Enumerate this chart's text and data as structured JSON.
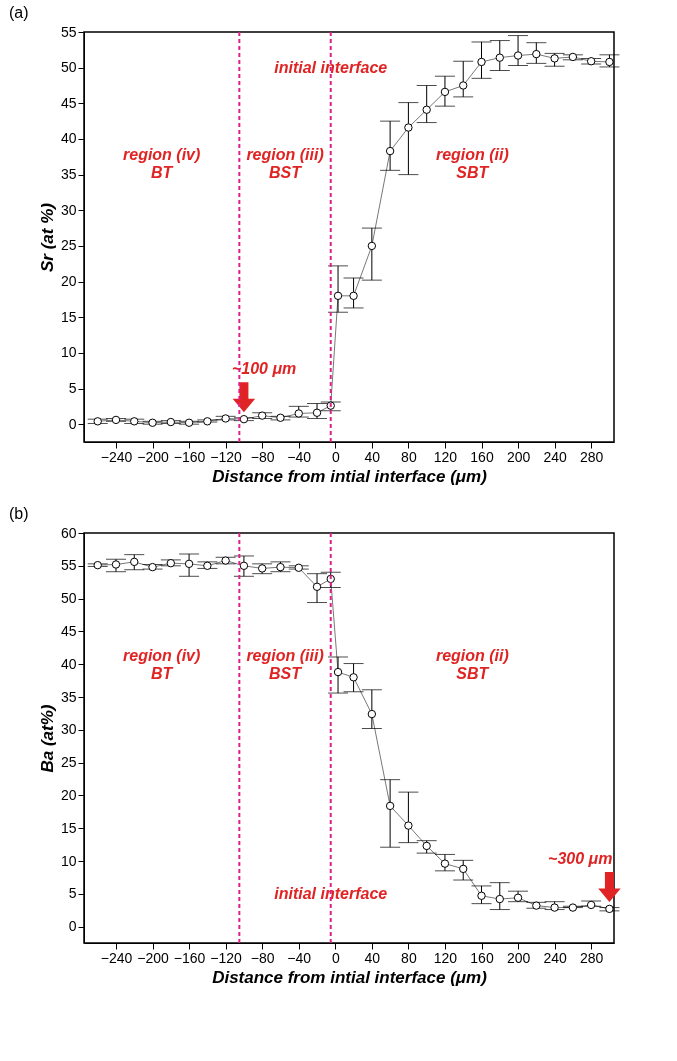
{
  "chart_data": [
    {
      "type": "line",
      "title": "(a)",
      "xlabel": "Distance from intial interface (μm)",
      "ylabel": "Sr (at %)",
      "marker": "circle",
      "x": [
        -260,
        -240,
        -220,
        -200,
        -180,
        -160,
        -140,
        -120,
        -100,
        -80,
        -60,
        -40,
        -20,
        -5,
        3,
        20,
        40,
        60,
        80,
        100,
        120,
        140,
        160,
        180,
        200,
        220,
        240,
        260,
        280,
        300
      ],
      "series": [
        {
          "color": "#555555",
          "values": [
            0.4,
            0.6,
            0.4,
            0.2,
            0.3,
            0.2,
            0.4,
            0.8,
            0.7,
            1.2,
            0.9,
            1.5,
            1.6,
            2.6,
            18,
            18,
            25,
            38.3,
            41.6,
            44.1,
            46.6,
            47.5,
            50.8,
            51.4,
            51.7,
            51.9,
            51.3,
            51.5,
            50.9,
            50.8
          ],
          "errors": [
            [
              0.1,
              0.7
            ],
            [
              0.4,
              0.8
            ],
            [
              0.1,
              0.7
            ],
            [
              0,
              0.4
            ],
            [
              0.1,
              0.5
            ],
            [
              0,
              0.4
            ],
            [
              0.3,
              0.6
            ],
            [
              0.6,
              1.1
            ],
            [
              0.5,
              0.9
            ],
            [
              0.8,
              1.6
            ],
            [
              0.6,
              1.1
            ],
            [
              1,
              2.5
            ],
            [
              0.8,
              2.9
            ],
            [
              1.9,
              3.1
            ],
            [
              15.7,
              22.2
            ],
            [
              16.3,
              20.5
            ],
            [
              20.2,
              27.5
            ],
            [
              35.6,
              42.5
            ],
            [
              35,
              45.1
            ],
            [
              42.3,
              47.5
            ],
            [
              44.6,
              48.8
            ],
            [
              45.9,
              50.9
            ],
            [
              48.5,
              53.6
            ],
            [
              49.6,
              53.8
            ],
            [
              50.3,
              54.5
            ],
            [
              50.6,
              53.5
            ],
            [
              50.2,
              52
            ],
            [
              51.1,
              51.8
            ],
            [
              50.5,
              51.3
            ],
            [
              50.1,
              51.8
            ]
          ]
        }
      ],
      "xlim": [
        -275,
        305
      ],
      "xticks": [
        -240,
        -200,
        -160,
        -120,
        -80,
        -40,
        0,
        40,
        80,
        120,
        160,
        200,
        240,
        280
      ],
      "ylim": [
        -2.5,
        55
      ],
      "yticks": [
        0,
        5,
        10,
        15,
        20,
        25,
        30,
        35,
        40,
        45,
        50,
        55
      ],
      "ref_lines": [
        {
          "axis": "x",
          "value": -105,
          "color": "#e0208a",
          "line_style": "dashed"
        },
        {
          "axis": "x",
          "value": -5,
          "color": "#e0208a",
          "line_style": "dashed"
        }
      ],
      "annotations": [
        "region (iv)\nBT",
        "region (iii)\nBST",
        "region (ii)\nSBT",
        {
          "text": "initial interface",
          "x": -5,
          "y": 50
        },
        {
          "text": "~100 μm",
          "x": -100,
          "y": 0.7
        }
      ]
    },
    {
      "type": "line",
      "title": "(b)",
      "xlabel": "Distance from intial interface (μm)",
      "ylabel": "Ba (at%)",
      "marker": "circle",
      "x": [
        -260,
        -240,
        -220,
        -200,
        -180,
        -160,
        -140,
        -120,
        -100,
        -80,
        -60,
        -40,
        -20,
        -5,
        3,
        20,
        40,
        60,
        80,
        100,
        120,
        140,
        160,
        180,
        200,
        220,
        240,
        260,
        280,
        300
      ],
      "series": [
        {
          "color": "#555555",
          "values": [
            55.1,
            55.2,
            55.6,
            54.8,
            55.4,
            55.3,
            55,
            55.8,
            55,
            54.6,
            54.8,
            54.7,
            51.8,
            53,
            38.8,
            38,
            32.4,
            18.4,
            15.4,
            12.3,
            9.6,
            8.8,
            4.7,
            4.2,
            4.4,
            3.2,
            2.9,
            2.9,
            3.3,
            2.7
          ],
          "errors": [
            [
              54.9,
              55.3
            ],
            [
              54.1,
              56
            ],
            [
              54.4,
              56.7
            ],
            [
              54.5,
              55.2
            ],
            [
              55,
              55.9
            ],
            [
              53.4,
              56.8
            ],
            [
              54.6,
              55.6
            ],
            [
              55.3,
              56.3
            ],
            [
              53.4,
              56.5
            ],
            [
              53.8,
              55.3
            ],
            [
              54.1,
              55.6
            ],
            [
              54.5,
              55
            ],
            [
              49.4,
              53.8
            ],
            [
              51.7,
              54
            ],
            [
              35.6,
              41.1
            ],
            [
              35.8,
              40.1
            ],
            [
              30.2,
              36.1
            ],
            [
              12.1,
              22.4
            ],
            [
              12.8,
              20.5
            ],
            [
              11.2,
              13.1
            ],
            [
              8.5,
              11
            ],
            [
              7.1,
              10.1
            ],
            [
              3.5,
              6.2
            ],
            [
              2.6,
              6.7
            ],
            [
              3.8,
              5.4
            ],
            [
              2.8,
              3.7
            ],
            [
              2.6,
              3.8
            ],
            [
              2.9,
              3.1
            ],
            [
              3.1,
              3.9
            ],
            [
              2.4,
              2.9
            ]
          ]
        }
      ],
      "xlim": [
        -275,
        305
      ],
      "xticks": [
        -240,
        -200,
        -160,
        -120,
        -80,
        -40,
        0,
        40,
        80,
        120,
        160,
        200,
        240,
        280
      ],
      "ylim": [
        -2.5,
        60
      ],
      "yticks": [
        0,
        5,
        10,
        15,
        20,
        25,
        30,
        35,
        40,
        45,
        50,
        55,
        60
      ],
      "ref_lines": [
        {
          "axis": "x",
          "value": -105,
          "color": "#e0208a",
          "line_style": "dashed"
        },
        {
          "axis": "x",
          "value": -5,
          "color": "#e0208a",
          "line_style": "dashed"
        }
      ],
      "annotations": [
        "region (iv)\nBT",
        "region (iii)\nBST",
        "region (ii)\nSBT",
        {
          "text": "initial interface",
          "x": -5,
          "y": 5
        },
        {
          "text": "~300 μm",
          "x": 300,
          "y": 2.7
        }
      ]
    }
  ]
}
